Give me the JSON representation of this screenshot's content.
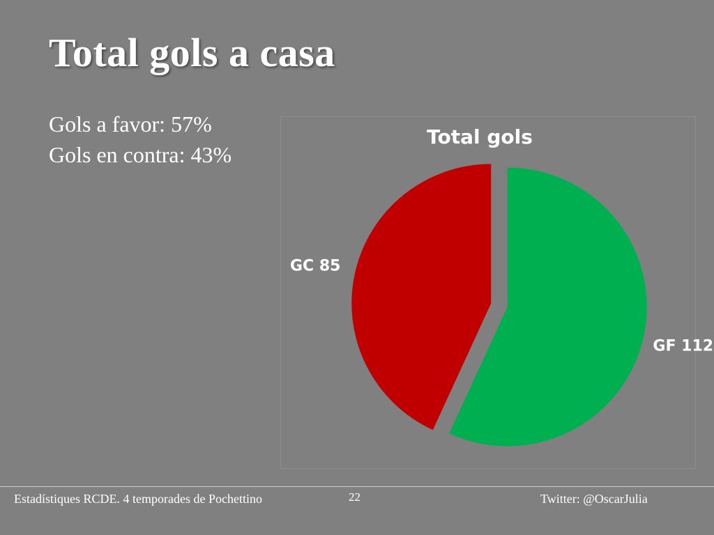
{
  "slide": {
    "title": "Total gols a casa",
    "bullets": [
      "Gols a favor: 57%",
      "Gols en contra: 43%"
    ]
  },
  "footer": {
    "left": "Estadístiques RCDE. 4 temporades de Pochettino",
    "page": "22",
    "right": "Twitter: @OscarJulia"
  },
  "chart_data": {
    "type": "pie",
    "title": "Total gols",
    "categories": [
      "GF",
      "GC"
    ],
    "values": [
      112,
      85
    ],
    "labels": [
      "GF 112",
      "GC 85"
    ],
    "colors": [
      "#00b050",
      "#c00000"
    ],
    "exploded": true,
    "legend": "none"
  }
}
